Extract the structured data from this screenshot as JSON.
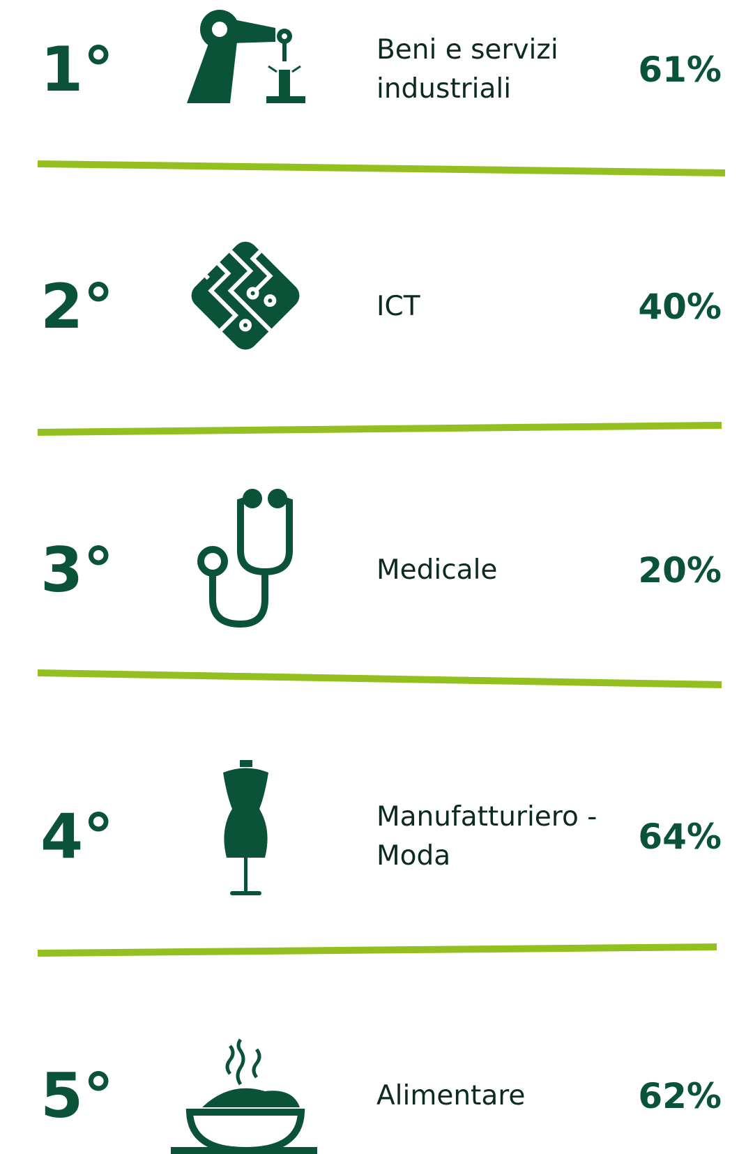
{
  "items": [
    {
      "rank": "1°",
      "label": [
        "Beni e servizi",
        "industriali"
      ],
      "percent": "61%"
    },
    {
      "rank": "2°",
      "label": [
        "ICT"
      ],
      "percent": "40%"
    },
    {
      "rank": "3°",
      "label": [
        "Medicale"
      ],
      "percent": "20%"
    },
    {
      "rank": "4°",
      "label": [
        "Manufatturiero -",
        "Moda"
      ],
      "percent": "64%"
    },
    {
      "rank": "5°",
      "label": [
        "Alimentare"
      ],
      "percent": "62%"
    }
  ]
}
